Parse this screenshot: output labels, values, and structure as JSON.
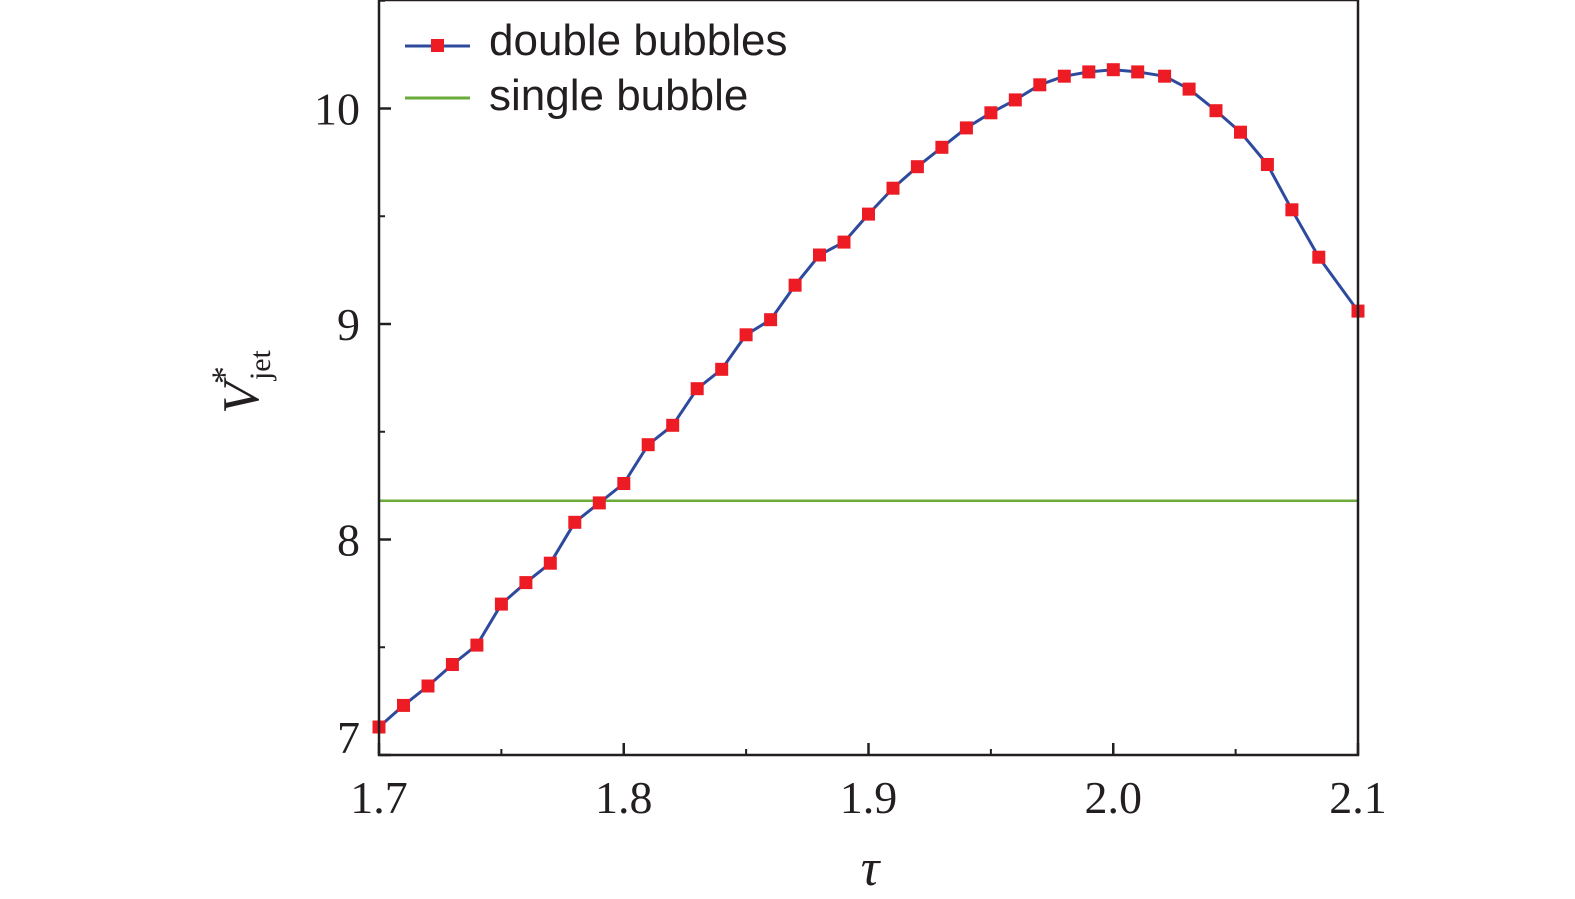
{
  "chart_data": {
    "type": "line",
    "xlabel": "τ",
    "ylabel": {
      "main": "V",
      "superscript": "*",
      "subscript": "jet"
    },
    "xlim": [
      1.7,
      2.1
    ],
    "ylim": [
      7,
      10.5
    ],
    "xticks": [
      1.7,
      1.8,
      1.9,
      2.0,
      2.1
    ],
    "xtick_labels": [
      "1.7",
      "1.8",
      "1.9",
      "2.0",
      "2.1"
    ],
    "yticks": [
      7,
      8,
      9,
      10
    ],
    "ytick_labels": [
      "7",
      "8",
      "9",
      "10"
    ],
    "grid": false,
    "legend_position": "top-left",
    "series": [
      {
        "name": "double bubbles",
        "line_color": "#2e4a9e",
        "marker_color": "#ed1c24",
        "marker": "square",
        "x": [
          1.7,
          1.71,
          1.72,
          1.73,
          1.74,
          1.75,
          1.76,
          1.77,
          1.78,
          1.79,
          1.8,
          1.81,
          1.82,
          1.83,
          1.84,
          1.85,
          1.86,
          1.87,
          1.88,
          1.89,
          1.9,
          1.91,
          1.92,
          1.93,
          1.94,
          1.95,
          1.96,
          1.97,
          1.98,
          1.99,
          2.0,
          2.01,
          2.021,
          2.031,
          2.042,
          2.052,
          2.063,
          2.073,
          2.084,
          2.1
        ],
        "y": [
          7.13,
          7.23,
          7.32,
          7.42,
          7.51,
          7.7,
          7.8,
          7.89,
          8.08,
          8.17,
          8.26,
          8.44,
          8.53,
          8.7,
          8.79,
          8.95,
          9.02,
          9.18,
          9.32,
          9.38,
          9.51,
          9.63,
          9.73,
          9.82,
          9.91,
          9.98,
          10.04,
          10.11,
          10.15,
          10.17,
          10.18,
          10.17,
          10.15,
          10.09,
          9.99,
          9.89,
          9.74,
          9.53,
          9.31,
          9.06
        ]
      },
      {
        "name": "single bubble",
        "line_color": "#6aab3a",
        "x": [
          1.7,
          2.1
        ],
        "y": [
          8.18,
          8.18
        ]
      }
    ]
  }
}
